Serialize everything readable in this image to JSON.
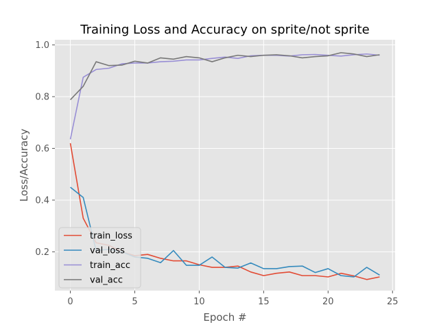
{
  "chart_data": {
    "type": "line",
    "title": "Training Loss and Accuracy on sprite/not sprite",
    "xlabel": "Epoch #",
    "ylabel": "Loss/Accuracy",
    "xlim": [
      -1.2,
      25.2
    ],
    "ylim": [
      0.05,
      1.02
    ],
    "xticks": [
      0,
      5,
      10,
      15,
      20,
      25
    ],
    "yticks": [
      0.2,
      0.4,
      0.6,
      0.8,
      1.0
    ],
    "xtick_labels": [
      "0",
      "5",
      "10",
      "15",
      "20",
      "25"
    ],
    "ytick_labels": [
      "0.2",
      "0.4",
      "0.6",
      "0.8",
      "1.0"
    ],
    "grid": true,
    "legend_position": "lower-left",
    "x": [
      0,
      1,
      2,
      3,
      4,
      5,
      6,
      7,
      8,
      9,
      10,
      11,
      12,
      13,
      14,
      15,
      16,
      17,
      18,
      19,
      20,
      21,
      22,
      23,
      24
    ],
    "series": [
      {
        "name": "train_loss",
        "color": "#E24A33",
        "values": [
          0.62,
          0.33,
          0.235,
          0.225,
          0.2,
          0.185,
          0.19,
          0.175,
          0.165,
          0.165,
          0.15,
          0.14,
          0.14,
          0.145,
          0.122,
          0.108,
          0.117,
          0.122,
          0.108,
          0.108,
          0.103,
          0.117,
          0.107,
          0.093,
          0.103
        ]
      },
      {
        "name": "val_loss",
        "color": "#348ABD",
        "values": [
          0.45,
          0.41,
          0.205,
          0.21,
          0.2,
          0.18,
          0.175,
          0.158,
          0.205,
          0.148,
          0.148,
          0.18,
          0.14,
          0.137,
          0.157,
          0.135,
          0.135,
          0.143,
          0.145,
          0.12,
          0.135,
          0.108,
          0.103,
          0.14,
          0.11
        ]
      },
      {
        "name": "train_acc",
        "color": "#988ED5",
        "values": [
          0.635,
          0.875,
          0.905,
          0.91,
          0.927,
          0.93,
          0.93,
          0.935,
          0.937,
          0.942,
          0.942,
          0.948,
          0.953,
          0.948,
          0.958,
          0.96,
          0.96,
          0.957,
          0.962,
          0.963,
          0.96,
          0.957,
          0.962,
          0.965,
          0.96
        ]
      },
      {
        "name": "val_acc",
        "color": "#777777",
        "values": [
          0.788,
          0.84,
          0.935,
          0.92,
          0.922,
          0.937,
          0.93,
          0.95,
          0.945,
          0.955,
          0.95,
          0.935,
          0.95,
          0.96,
          0.955,
          0.96,
          0.962,
          0.958,
          0.95,
          0.955,
          0.958,
          0.97,
          0.965,
          0.955,
          0.962
        ]
      }
    ]
  }
}
